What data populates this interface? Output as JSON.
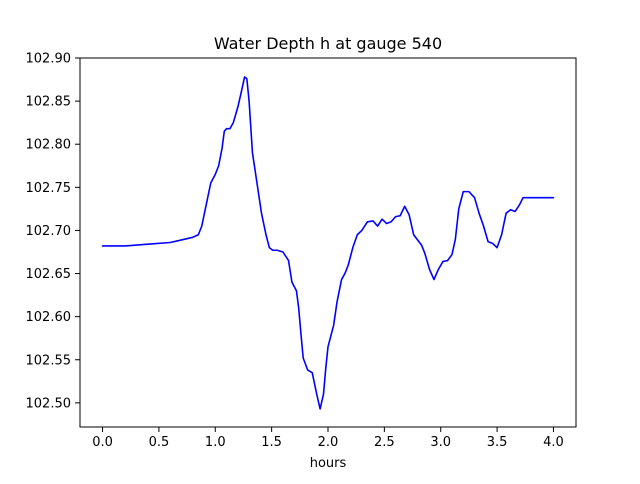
{
  "chart_data": {
    "type": "line",
    "title": "Water Depth h at gauge 540",
    "xlabel": "hours",
    "ylabel": "",
    "xlim": [
      -0.2,
      4.2
    ],
    "ylim": [
      102.472,
      102.9
    ],
    "xticks": [
      0.0,
      0.5,
      1.0,
      1.5,
      2.0,
      2.5,
      3.0,
      3.5,
      4.0
    ],
    "xtick_labels": [
      "0.0",
      "0.5",
      "1.0",
      "1.5",
      "2.0",
      "2.5",
      "3.0",
      "3.5",
      "4.0"
    ],
    "yticks": [
      102.5,
      102.55,
      102.6,
      102.65,
      102.7,
      102.75,
      102.8,
      102.85,
      102.9
    ],
    "ytick_labels": [
      "102.50",
      "102.55",
      "102.60",
      "102.65",
      "102.70",
      "102.75",
      "102.80",
      "102.85",
      "102.90"
    ],
    "grid": false,
    "series": [
      {
        "color": "#0000ff",
        "x": [
          0.0,
          0.2,
          0.4,
          0.6,
          0.7,
          0.8,
          0.85,
          0.88,
          0.92,
          0.96,
          1.0,
          1.03,
          1.06,
          1.08,
          1.1,
          1.13,
          1.16,
          1.2,
          1.23,
          1.26,
          1.28,
          1.3,
          1.33,
          1.37,
          1.41,
          1.45,
          1.48,
          1.51,
          1.55,
          1.6,
          1.65,
          1.68,
          1.7,
          1.72,
          1.74,
          1.76,
          1.78,
          1.82,
          1.86,
          1.9,
          1.93,
          1.96,
          1.98,
          2.0,
          2.02,
          2.05,
          2.08,
          2.12,
          2.15,
          2.18,
          2.22,
          2.26,
          2.3,
          2.35,
          2.4,
          2.44,
          2.48,
          2.52,
          2.56,
          2.6,
          2.64,
          2.68,
          2.72,
          2.76,
          2.8,
          2.83,
          2.86,
          2.9,
          2.94,
          2.98,
          3.02,
          3.06,
          3.1,
          3.13,
          3.16,
          3.2,
          3.25,
          3.3,
          3.34,
          3.38,
          3.42,
          3.46,
          3.5,
          3.54,
          3.58,
          3.62,
          3.66,
          3.7,
          3.73,
          3.76,
          3.8,
          3.84,
          3.88,
          3.92,
          3.96,
          4.0
        ],
        "y": [
          102.682,
          102.682,
          102.684,
          102.686,
          102.689,
          102.692,
          102.695,
          102.705,
          102.73,
          102.755,
          102.765,
          102.775,
          102.795,
          102.815,
          102.818,
          102.818,
          102.825,
          102.843,
          102.86,
          102.878,
          102.876,
          102.85,
          102.79,
          102.755,
          102.72,
          102.695,
          102.68,
          102.677,
          102.677,
          102.675,
          102.665,
          102.64,
          102.635,
          102.63,
          102.61,
          102.58,
          102.552,
          102.538,
          102.535,
          102.51,
          102.493,
          102.51,
          102.54,
          102.565,
          102.575,
          102.59,
          102.617,
          102.643,
          102.65,
          102.66,
          102.68,
          102.695,
          102.7,
          102.71,
          102.711,
          102.705,
          102.713,
          102.708,
          102.71,
          102.716,
          102.717,
          102.728,
          102.718,
          102.695,
          102.688,
          102.683,
          102.673,
          102.655,
          102.643,
          102.655,
          102.664,
          102.665,
          102.672,
          102.69,
          102.725,
          102.745,
          102.745,
          102.738,
          102.72,
          102.705,
          102.687,
          102.685,
          102.68,
          102.695,
          102.72,
          102.724,
          102.722,
          102.73,
          102.738,
          102.738,
          102.738,
          102.738,
          102.738,
          102.738,
          102.738,
          102.738
        ]
      }
    ]
  }
}
